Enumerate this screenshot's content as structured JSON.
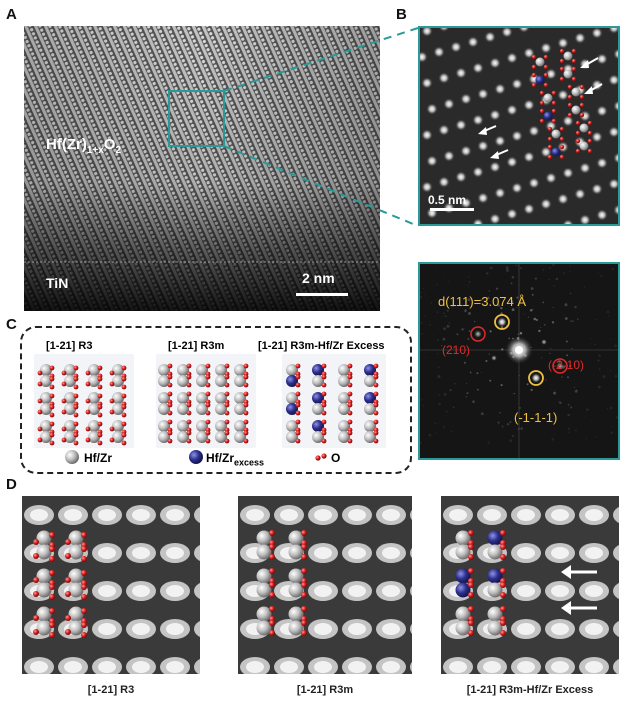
{
  "panel_a": {
    "letter": "A",
    "material_main": "Hf(Zr)",
    "material_sub": "1+x",
    "material_o": "O",
    "material_o_sub": "2",
    "substrate": "TiN",
    "scale_bar": "2 nm"
  },
  "panel_b": {
    "letter": "B",
    "scale_bar": "0.5 nm"
  },
  "fft": {
    "d_label": "d(111)=3.074 Å",
    "spot_210": "(210)",
    "spot_m2m10": "(-2-10)",
    "spot_m1m1m1": "(-1-1-1)"
  },
  "panel_c": {
    "letter": "C",
    "models": [
      {
        "title": "[1-21] R3"
      },
      {
        "title": "[1-21] R3m"
      },
      {
        "title": "[1-21] R3m-Hf/Zr Excess"
      }
    ],
    "legend_hfzr": "Hf/Zr",
    "legend_excess_main": "Hf/Zr",
    "legend_excess_sub": "excess",
    "legend_o": "O"
  },
  "panel_d": {
    "letter": "D",
    "captions": [
      "[1-21] R3",
      "[1-21] R3m",
      "[1-21] R3m-Hf/Zr Excess"
    ]
  },
  "colors": {
    "teal": "#2a9a98",
    "oxygen": "#d81e1e",
    "metal": "#b8b8b8",
    "excess": "#2b2f8c",
    "fft_yellow": "#f0c040",
    "fft_red": "#e02a2a"
  }
}
